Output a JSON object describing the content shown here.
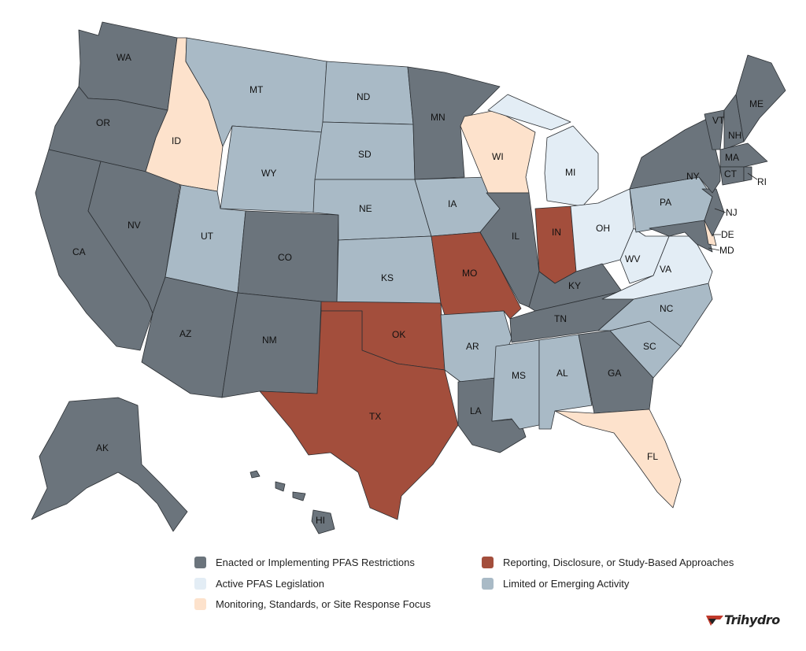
{
  "legend": {
    "enacted": {
      "label": "Enacted or Implementing PFAS Restrictions",
      "color": "#6b747c"
    },
    "active": {
      "label": "Active PFAS Legislation",
      "color": "#e3edf5"
    },
    "monitoring": {
      "label": "Monitoring, Standards, or Site Response Focus",
      "color": "#fde2cc"
    },
    "reporting": {
      "label": "Reporting, Disclosure, or Study-Based Approaches",
      "color": "#a34e3c"
    },
    "limited": {
      "label": "Limited or Emerging Activity",
      "color": "#a9bac6"
    }
  },
  "states": {
    "WA": "WA",
    "OR": "OR",
    "CA": "CA",
    "NV": "NV",
    "ID": "ID",
    "MT": "MT",
    "WY": "WY",
    "UT": "UT",
    "AZ": "AZ",
    "CO": "CO",
    "NM": "NM",
    "ND": "ND",
    "SD": "SD",
    "NE": "NE",
    "KS": "KS",
    "OK": "OK",
    "TX": "TX",
    "MN": "MN",
    "IA": "IA",
    "MO": "MO",
    "AR": "AR",
    "LA": "LA",
    "WI": "WI",
    "IL": "IL",
    "MI": "MI",
    "IN": "IN",
    "OH": "OH",
    "KY": "KY",
    "TN": "TN",
    "MS": "MS",
    "AL": "AL",
    "GA": "GA",
    "FL": "FL",
    "SC": "SC",
    "NC": "NC",
    "VA": "VA",
    "WV": "WV",
    "PA": "PA",
    "NY": "NY",
    "VT": "VT",
    "NH": "NH",
    "ME": "ME",
    "MA": "MA",
    "CT": "CT",
    "RI": "RI",
    "NJ": "NJ",
    "DE": "DE",
    "MD": "MD",
    "AK": "AK",
    "HI": "HI"
  },
  "brand": {
    "name": "Trihydro"
  }
}
